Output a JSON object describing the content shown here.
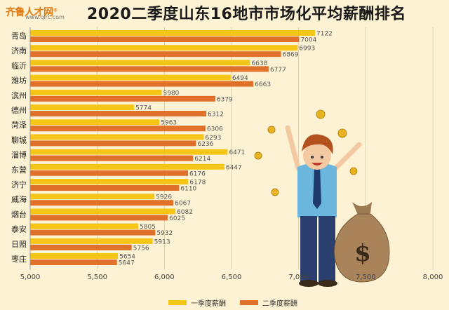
{
  "header": {
    "logo_text": "齐鲁人才网",
    "logo_tm": "®",
    "logo_url": "www.qlrc.com",
    "title": "2020二季度山东16地市市场化平均薪酬排名"
  },
  "colors": {
    "series1": "#f5c518",
    "series2": "#e0712b"
  },
  "chart_data": {
    "type": "bar",
    "orientation": "horizontal",
    "title": "2020二季度山东16地市市场化平均薪酬排名",
    "categories": [
      "青岛",
      "济南",
      "临沂",
      "潍坊",
      "滨州",
      "德州",
      "菏泽",
      "聊城",
      "淄博",
      "东营",
      "济宁",
      "威海",
      "烟台",
      "泰安",
      "日照",
      "枣庄"
    ],
    "series": [
      {
        "name": "一季度薪酬",
        "color": "#f5c518",
        "values": [
          7122,
          6993,
          6638,
          6494,
          5980,
          5774,
          5963,
          6293,
          6471,
          6447,
          6178,
          5926,
          6082,
          5805,
          5913,
          5654
        ]
      },
      {
        "name": "二季度薪酬",
        "color": "#e0712b",
        "values": [
          7004,
          6869,
          6777,
          6663,
          6379,
          6312,
          6306,
          6236,
          6214,
          6176,
          6110,
          6067,
          6025,
          5932,
          5756,
          5647
        ]
      }
    ],
    "xlim": [
      5000,
      8000
    ],
    "xticks": [
      "5,000",
      "5,500",
      "6,000",
      "6,500",
      "7,000",
      "7,500",
      "8,000"
    ],
    "grid": true,
    "legend_position": "bottom"
  }
}
